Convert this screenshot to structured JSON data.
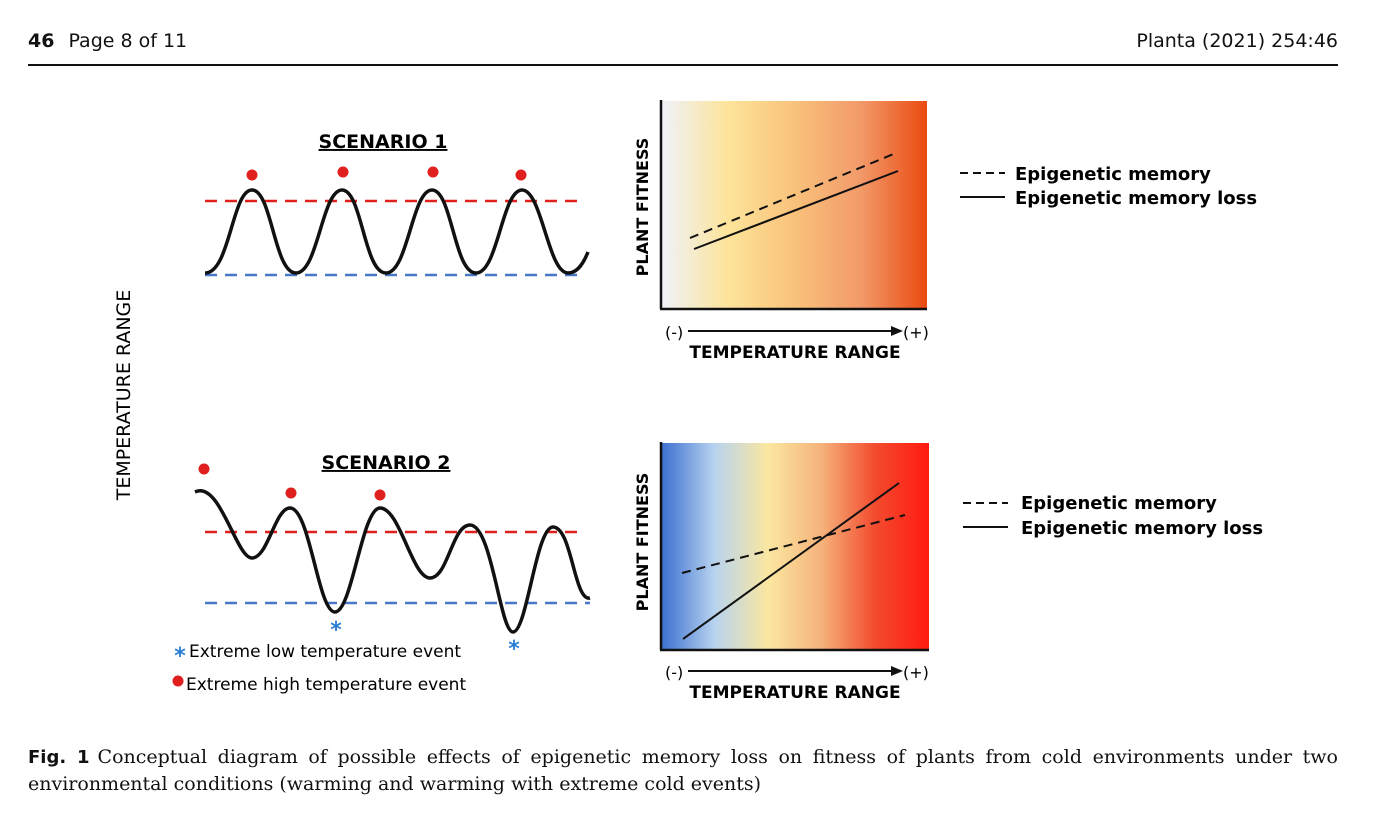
{
  "page_header": {
    "article_number": "46",
    "page_label": "Page 8 of 11",
    "journal_citation": "Planta (2021) 254:46"
  },
  "figure": {
    "left_axis_label": "TEMPERATURE RANGE",
    "scenario_1": {
      "title": "SCENARIO 1",
      "fitness_panel": {
        "y_label": "PLANT FITNESS",
        "x_label": "TEMPERATURE RANGE",
        "x_min_label": "(-)",
        "x_max_label": "(+)",
        "gradient_colors": [
          "#eef2fb",
          "#fde49a",
          "#f9c27b",
          "#f29a6a",
          "#ea4a10"
        ]
      },
      "legend": {
        "dashed": "Epigenetic memory",
        "solid": "Epigenetic memory loss"
      }
    },
    "scenario_2": {
      "title": "SCENARIO 2",
      "fitness_panel": {
        "y_label": "PLANT FITNESS",
        "x_label": "TEMPERATURE RANGE",
        "x_min_label": "(-)",
        "x_max_label": "(+)",
        "gradient_colors": [
          "#3a6fd0",
          "#b8d3ef",
          "#fbe7a0",
          "#f5b27a",
          "#f34a2e",
          "#ff1a10"
        ]
      },
      "legend": {
        "dashed": "Epigenetic memory",
        "solid": "Epigenetic memory loss"
      },
      "event_legend": {
        "low_marker": "*",
        "low": "Extreme low temperature event",
        "high": "Extreme high temperature event"
      }
    },
    "colors": {
      "high_threshold": "#e0201e",
      "low_threshold": "#4a78c8",
      "high_event": "#e0201e",
      "low_event": "#2a7fd4"
    }
  },
  "caption": {
    "label": "Fig. 1",
    "text": "Conceptual diagram of possible effects of epigenetic memory loss on fitness of plants from cold environments under two environmental conditions (warming and warming with extreme cold events)"
  }
}
